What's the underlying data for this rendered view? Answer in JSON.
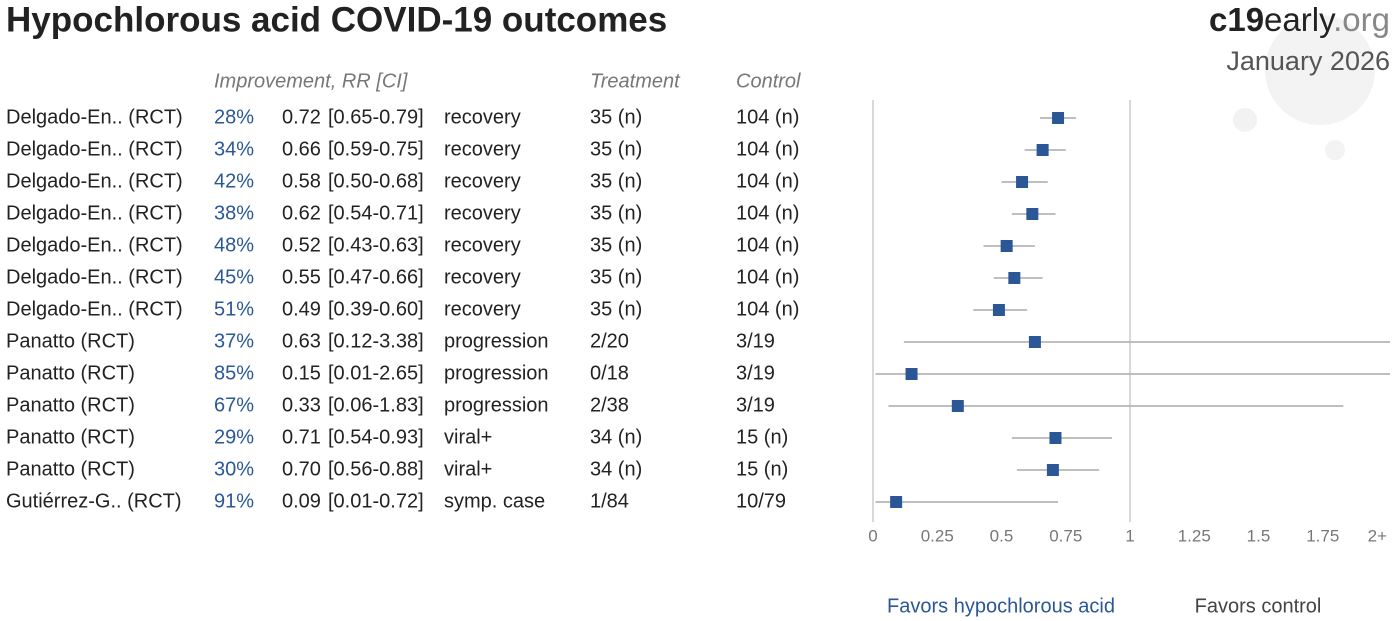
{
  "chart_data": {
    "type": "forest",
    "title": "Hypochlorous acid COVID-19 outcomes",
    "brand": [
      "c19",
      "early",
      ".org"
    ],
    "date": "January 2026",
    "headers": {
      "improvement": "Improvement, RR [CI]",
      "treatment": "Treatment",
      "control": "Control"
    },
    "studies": [
      "Delgado-En.. (RCT)",
      "Delgado-En.. (RCT)",
      "Delgado-En.. (RCT)",
      "Delgado-En.. (RCT)",
      "Delgado-En.. (RCT)",
      "Delgado-En.. (RCT)",
      "Delgado-En.. (RCT)",
      "Panatto (RCT)",
      "Panatto (RCT)",
      "Panatto (RCT)",
      "Panatto (RCT)",
      "Panatto (RCT)",
      "Gutiérrez-G.. (RCT)"
    ],
    "improvement": [
      28,
      34,
      42,
      38,
      48,
      45,
      51,
      37,
      85,
      67,
      29,
      30,
      91
    ],
    "improvement_labels": [
      "28%",
      "34%",
      "42%",
      "38%",
      "48%",
      "45%",
      "51%",
      "37%",
      "85%",
      "67%",
      "29%",
      "30%",
      "91%"
    ],
    "values": [
      0.72,
      0.66,
      0.58,
      0.62,
      0.52,
      0.55,
      0.49,
      0.63,
      0.15,
      0.33,
      0.71,
      0.7,
      0.09
    ],
    "value_labels": [
      "0.72",
      "0.66",
      "0.58",
      "0.62",
      "0.52",
      "0.55",
      "0.49",
      "0.63",
      "0.15",
      "0.33",
      "0.71",
      "0.70",
      "0.09"
    ],
    "ci_low": [
      0.65,
      0.59,
      0.5,
      0.54,
      0.43,
      0.47,
      0.39,
      0.12,
      0.01,
      0.06,
      0.54,
      0.56,
      0.01
    ],
    "ci_high": [
      0.79,
      0.75,
      0.68,
      0.71,
      0.63,
      0.66,
      0.6,
      3.38,
      2.65,
      1.83,
      0.93,
      0.88,
      0.72
    ],
    "ci_labels": [
      "[0.65-0.79]",
      "[0.59-0.75]",
      "[0.50-0.68]",
      "[0.54-0.71]",
      "[0.43-0.63]",
      "[0.47-0.66]",
      "[0.39-0.60]",
      "[0.12-3.38]",
      "[0.01-2.65]",
      "[0.06-1.83]",
      "[0.54-0.93]",
      "[0.56-0.88]",
      "[0.01-0.72]"
    ],
    "outcomes": [
      "recovery",
      "recovery",
      "recovery",
      "recovery",
      "recovery",
      "recovery",
      "recovery",
      "progression",
      "progression",
      "progression",
      "viral+",
      "viral+",
      "symp. case"
    ],
    "treatment": [
      "35 (n)",
      "35 (n)",
      "35 (n)",
      "35 (n)",
      "35 (n)",
      "35 (n)",
      "35 (n)",
      "2/20",
      "0/18",
      "2/38",
      "34 (n)",
      "34 (n)",
      "1/84"
    ],
    "control": [
      "104 (n)",
      "104 (n)",
      "104 (n)",
      "104 (n)",
      "104 (n)",
      "104 (n)",
      "104 (n)",
      "3/19",
      "3/19",
      "3/19",
      "15 (n)",
      "15 (n)",
      "10/79"
    ],
    "xlim": [
      0,
      2
    ],
    "xticks": [
      0,
      0.25,
      0.5,
      0.75,
      1,
      1.25,
      1.5,
      1.75,
      {
        "value": 2,
        "label": "2+"
      }
    ],
    "reference_line": 1,
    "favors_left": "Favors hypochlorous acid",
    "favors_right": "Favors control",
    "color": "#2b5797"
  }
}
